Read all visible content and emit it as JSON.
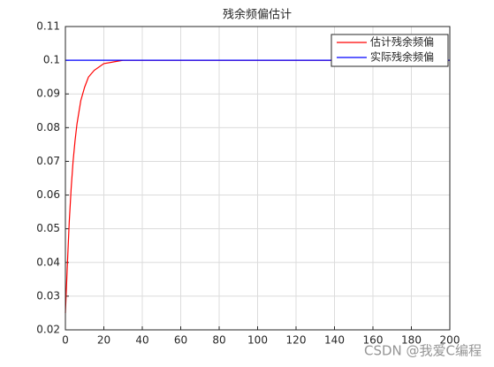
{
  "chart_data": {
    "type": "line",
    "title": "残余频偏估计",
    "series": [
      {
        "name": "估计残余频偏",
        "color": "#ff0000",
        "x": [
          0,
          1,
          2,
          3,
          4,
          5,
          6,
          8,
          10,
          12,
          15,
          20,
          25,
          30,
          40,
          60,
          80,
          100,
          120,
          140,
          160,
          180,
          200
        ],
        "values": [
          0.025,
          0.039,
          0.052,
          0.062,
          0.07,
          0.076,
          0.081,
          0.088,
          0.092,
          0.095,
          0.097,
          0.099,
          0.0995,
          0.1,
          0.1,
          0.1,
          0.1,
          0.1,
          0.1,
          0.1,
          0.1,
          0.1,
          0.1
        ]
      },
      {
        "name": "实际残余频偏",
        "color": "#0000ff",
        "x": [
          0,
          200
        ],
        "values": [
          0.1,
          0.1
        ]
      }
    ],
    "xlim": [
      0,
      200
    ],
    "xticks": [
      0,
      20,
      40,
      60,
      80,
      100,
      120,
      140,
      160,
      180,
      200
    ],
    "ylim": [
      0.02,
      0.11
    ],
    "yticks": [
      0.02,
      0.03,
      0.04,
      0.05,
      0.06,
      0.07,
      0.08,
      0.09,
      0.1,
      0.11
    ],
    "grid": true,
    "legend": "upper right",
    "watermark": "CSDN @我爱C编程"
  }
}
